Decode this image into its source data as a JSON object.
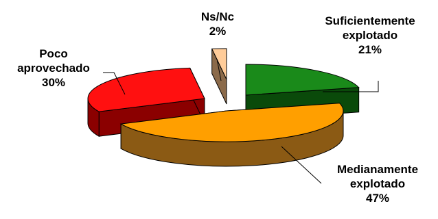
{
  "chart_data": {
    "type": "pie",
    "style": "3d-exploded",
    "slices": [
      {
        "label_lines": [
          "Suficientemente",
          "explotado"
        ],
        "value": 21,
        "percent_label": "21%",
        "color": "#1a8a1a",
        "side_color": "#0a4a0a"
      },
      {
        "label_lines": [
          "Medianamente",
          "explotado"
        ],
        "value": 47,
        "percent_label": "47%",
        "color": "#ff9f00",
        "side_color": "#8b5a14"
      },
      {
        "label_lines": [
          "Poco",
          "aprovechado"
        ],
        "value": 30,
        "percent_label": "30%",
        "color": "#ff1010",
        "side_color": "#8b0000"
      },
      {
        "label_lines": [
          "Ns/Nc"
        ],
        "value": 2,
        "percent_label": "2%",
        "color": "#ffcc99",
        "side_color": "#8b6a4a"
      }
    ]
  }
}
